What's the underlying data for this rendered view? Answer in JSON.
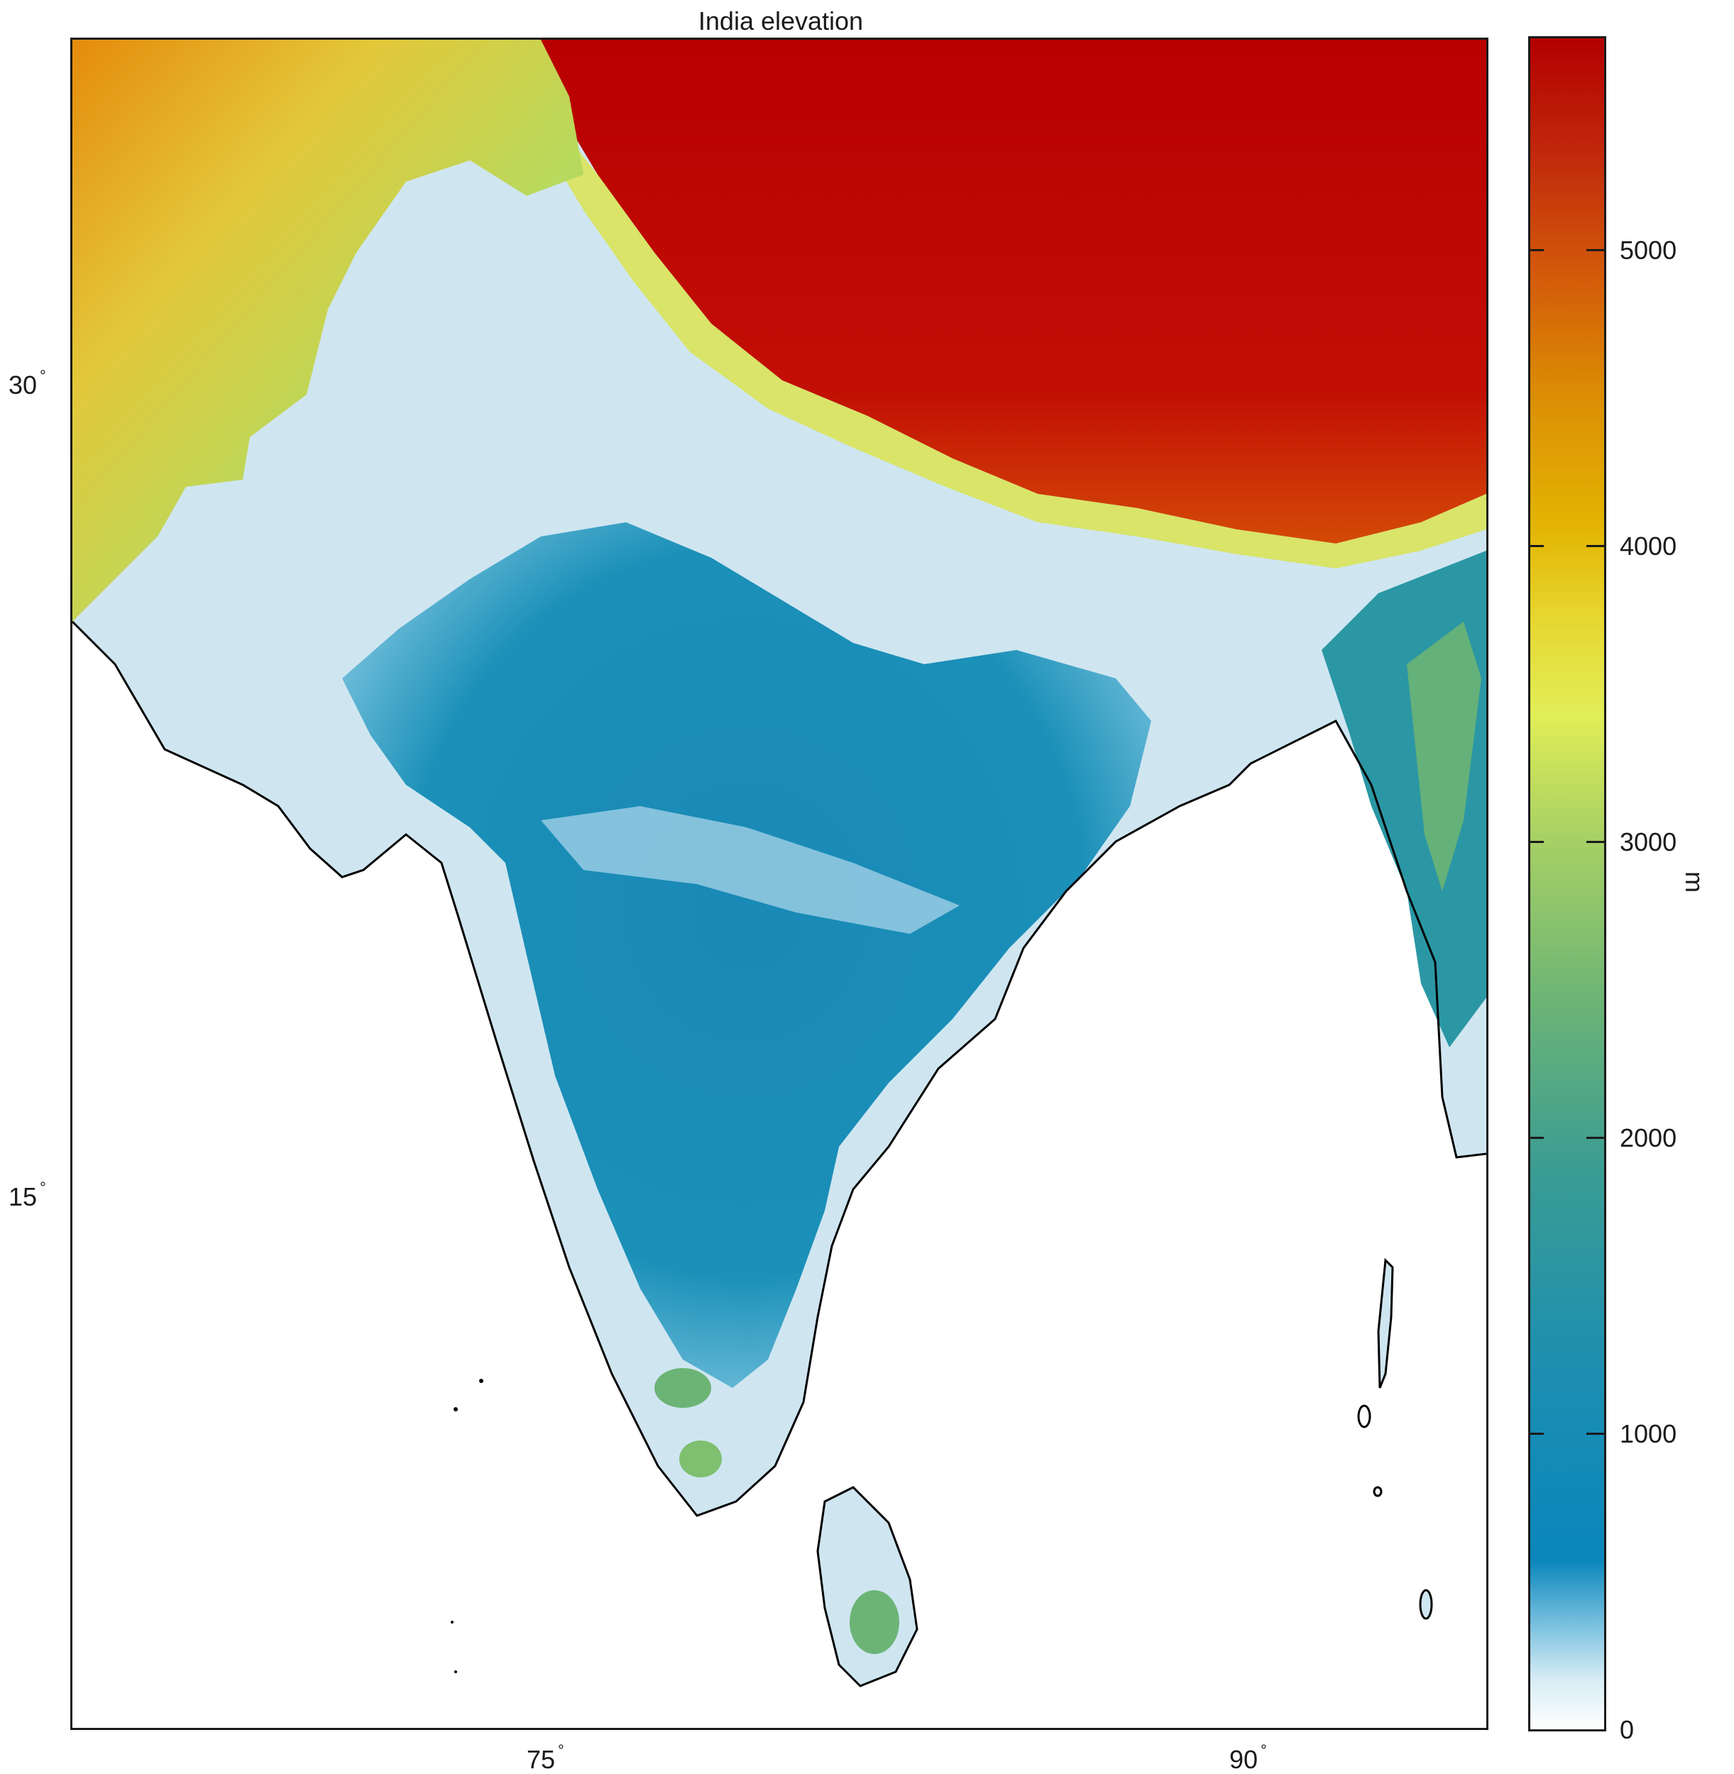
{
  "title": "India elevation",
  "y_axis": {
    "ticks": [
      "30",
      "15"
    ],
    "degree_symbol": "°"
  },
  "x_axis": {
    "ticks": [
      "75",
      "90"
    ],
    "degree_symbol": "°"
  },
  "colorbar": {
    "unit": "m",
    "ticks": [
      "0",
      "1000",
      "2000",
      "3000",
      "4000",
      "5000"
    ],
    "range": [
      0,
      5700
    ],
    "colors": {
      "low": "#ffffff",
      "mid_low": "#0a86bd",
      "mid": "#a9d163",
      "mid_high": "#e3b503",
      "high": "#b30000"
    }
  },
  "map": {
    "region": "India",
    "coastline_color": "#000000",
    "ocean_color": "#ffffff"
  }
}
